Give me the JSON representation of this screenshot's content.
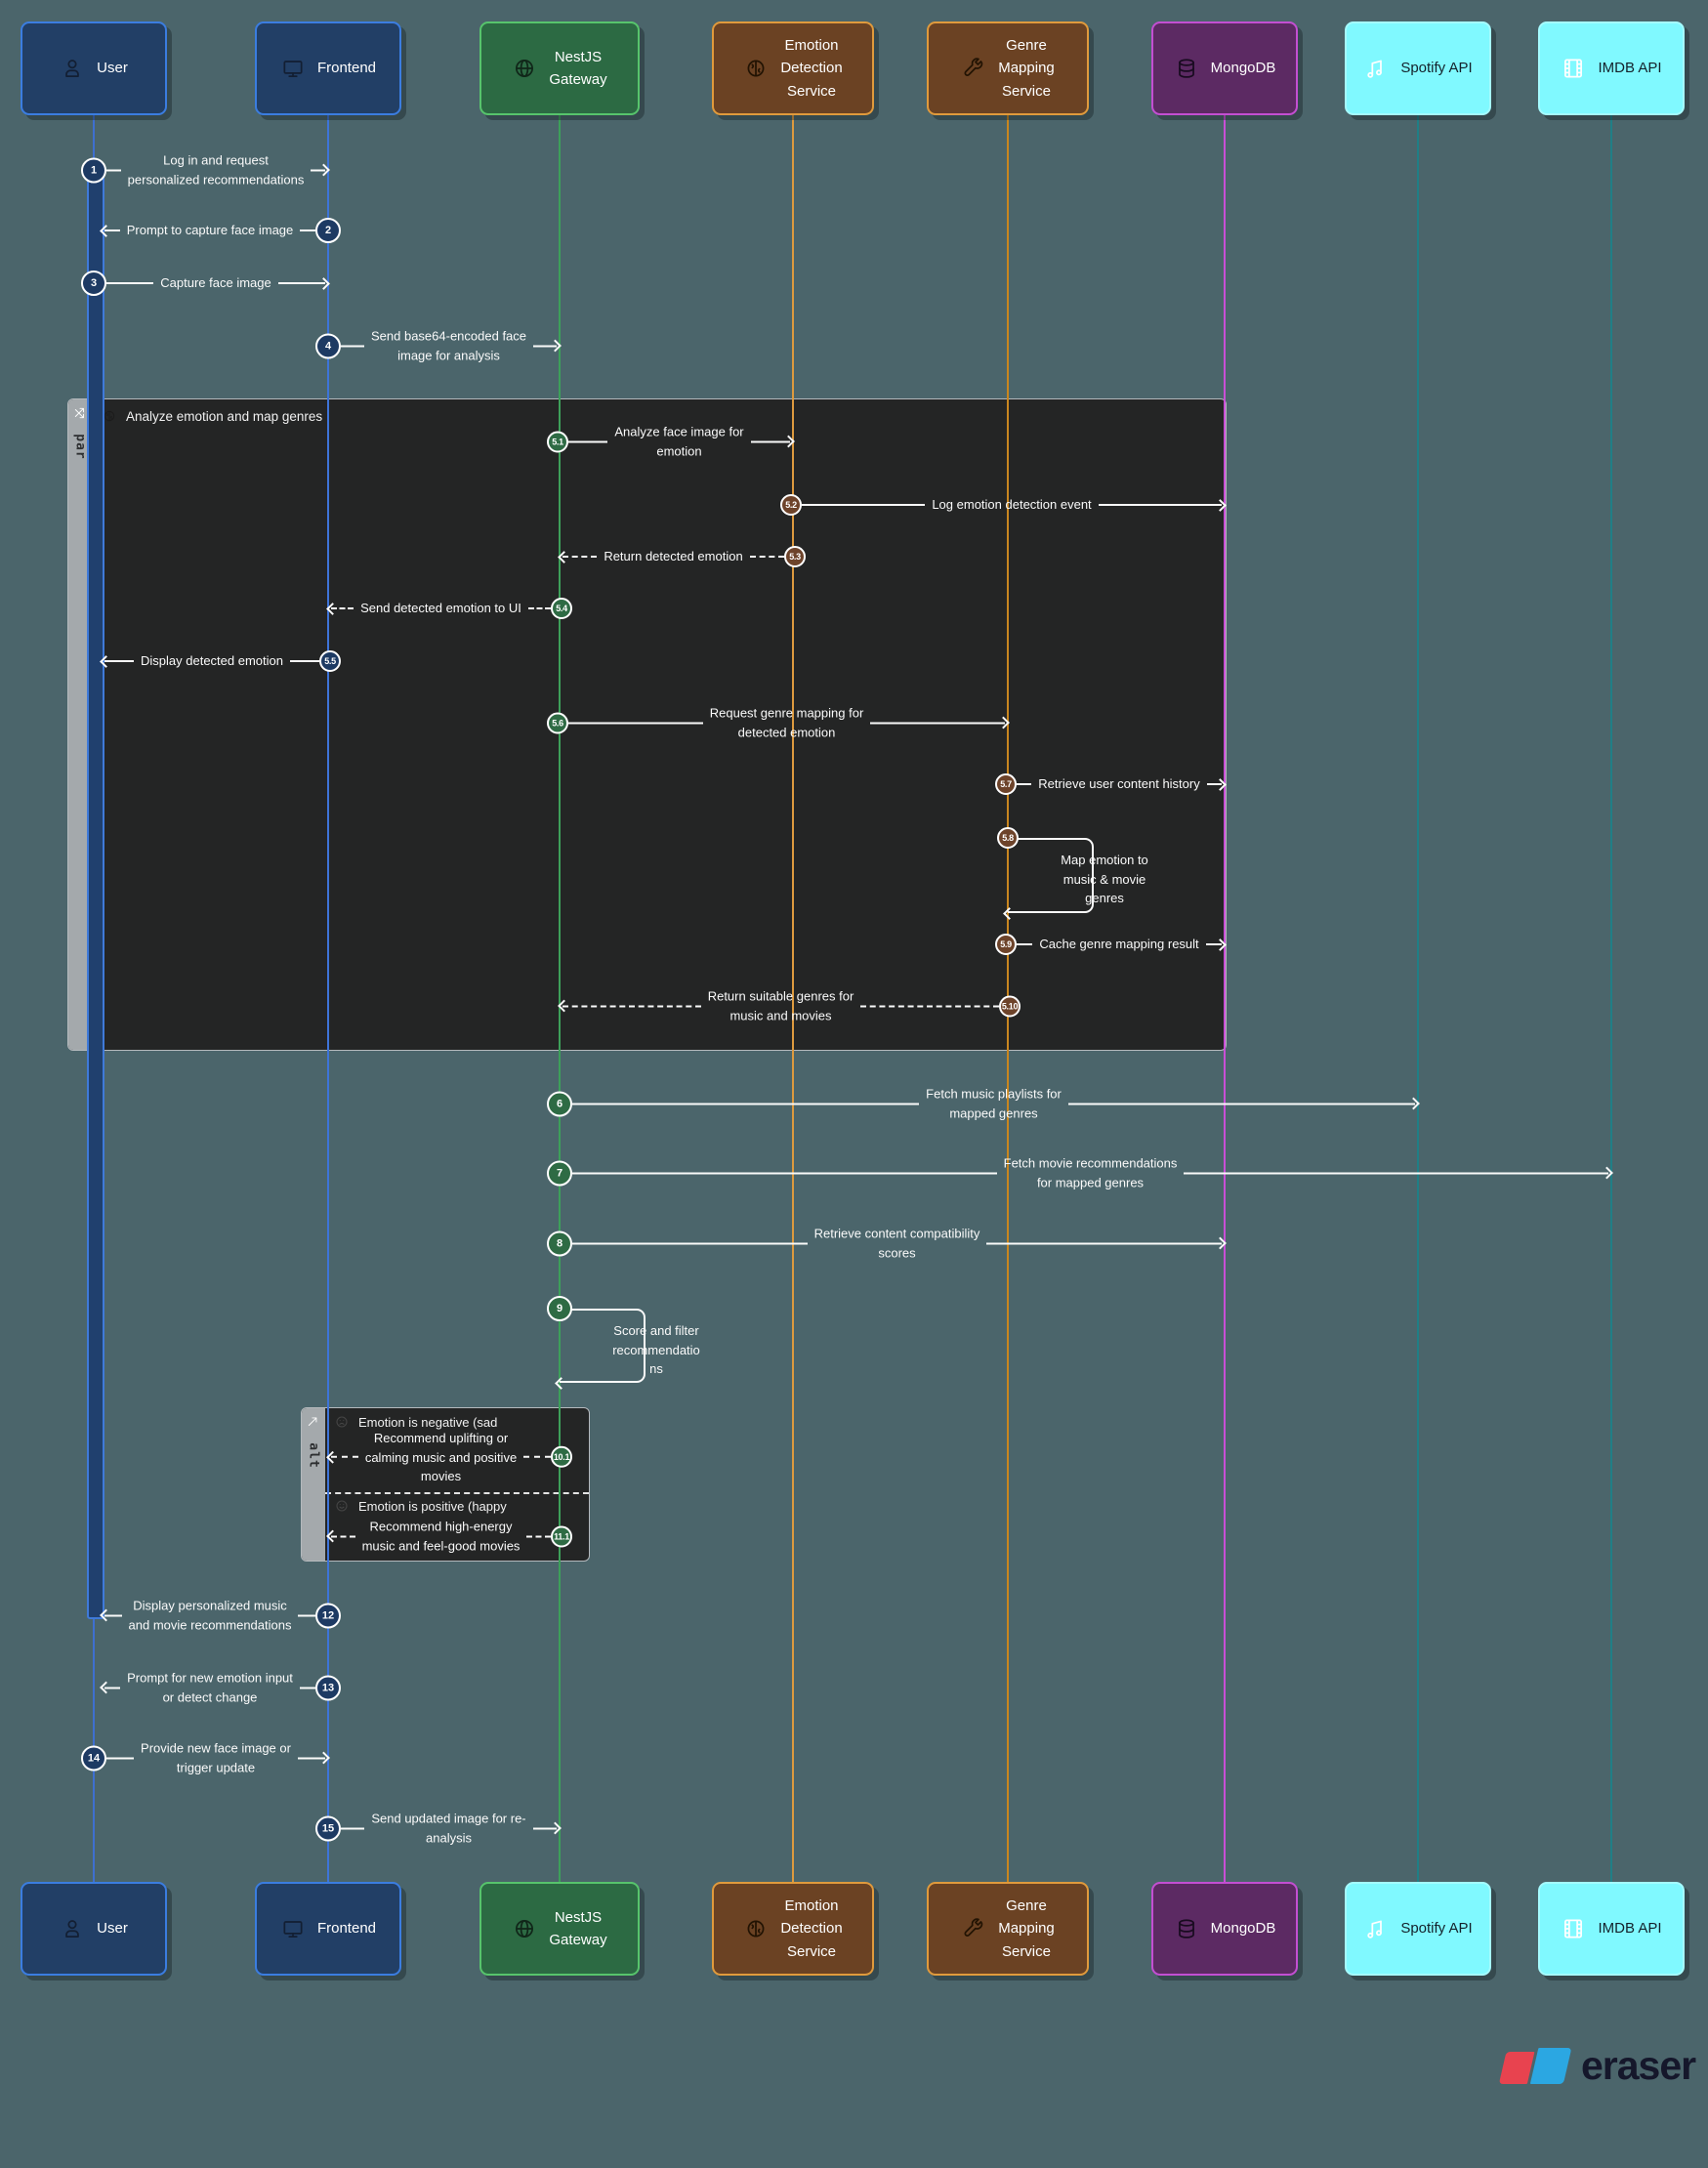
{
  "diagram": {
    "background": "#4b656b",
    "actors": [
      {
        "id": "user",
        "label": "User",
        "icon": "person-icon",
        "fill": "#223f66",
        "border": "#3b7de0",
        "text_color": "#ffffff",
        "icon_color": "#131f33",
        "lifeline": "#3e6fd0"
      },
      {
        "id": "frontend",
        "label": "Frontend",
        "icon": "monitor-icon",
        "fill": "#223f66",
        "border": "#3b7de0",
        "text_color": "#ffffff",
        "icon_color": "#131f33",
        "lifeline": "#3e74d8"
      },
      {
        "id": "gateway",
        "label": "NestJS\nGateway",
        "icon": "globe-icon",
        "fill": "#2c6a43",
        "border": "#57c46c",
        "text_color": "#ffffff",
        "icon_color": "#102619",
        "lifeline": "#3da05a"
      },
      {
        "id": "emotion",
        "label": "Emotion\nDetection\nService",
        "icon": "brain-icon",
        "fill": "#6b4223",
        "border": "#e09a3c",
        "text_color": "#ffffff",
        "icon_color": "#221303",
        "lifeline": "#dd9a3f"
      },
      {
        "id": "genre",
        "label": "Genre\nMapping\nService",
        "icon": "wrench-icon",
        "fill": "#6b4223",
        "border": "#e09a3c",
        "text_color": "#ffffff",
        "icon_color": "#221303",
        "lifeline": "#c9861f"
      },
      {
        "id": "mongodb",
        "label": "MongoDB",
        "icon": "database-icon",
        "fill": "#5c2a63",
        "border": "#c34fd2",
        "text_color": "#ffffff",
        "icon_color": "#190b20",
        "lifeline": "#c94fd6"
      },
      {
        "id": "spotify",
        "label": "Spotify API",
        "icon": "music-icon",
        "fill": "#80f9ff",
        "border": "#a5fbff",
        "text_color": "#14222b",
        "icon_color": "#ffffff",
        "lifeline": "#207f86"
      },
      {
        "id": "imdb",
        "label": "IMDB API",
        "icon": "film-icon",
        "fill": "#80f9ff",
        "border": "#a5fbff",
        "text_color": "#14222b",
        "icon_color": "#ffffff",
        "lifeline": "#207f86"
      }
    ],
    "messages": [
      {
        "num": "1",
        "from": "user",
        "to": "frontend",
        "text": "Log in and request\npersonalized recommendations",
        "style": "solid"
      },
      {
        "num": "2",
        "from": "frontend",
        "to": "user",
        "text": "Prompt to capture face image",
        "style": "solid"
      },
      {
        "num": "3",
        "from": "user",
        "to": "frontend",
        "text": "Capture face image",
        "style": "solid"
      },
      {
        "num": "4",
        "from": "frontend",
        "to": "gateway",
        "text": "Send base64-encoded face\nimage for analysis",
        "style": "solid"
      },
      {
        "num": "5.1",
        "from": "gateway",
        "to": "emotion",
        "text": "Analyze face image for\nemotion",
        "style": "solid"
      },
      {
        "num": "5.2",
        "from": "emotion",
        "to": "mongodb",
        "text": "Log emotion detection event",
        "style": "solid"
      },
      {
        "num": "5.3",
        "from": "emotion",
        "to": "gateway",
        "text": "Return detected emotion",
        "style": "dashed"
      },
      {
        "num": "5.4",
        "from": "gateway",
        "to": "frontend",
        "text": "Send detected emotion to UI",
        "style": "dashed"
      },
      {
        "num": "5.5",
        "from": "frontend",
        "to": "user",
        "text": "Display detected emotion",
        "style": "solid"
      },
      {
        "num": "5.6",
        "from": "gateway",
        "to": "genre",
        "text": "Request genre mapping for\ndetected emotion",
        "style": "solid"
      },
      {
        "num": "5.7",
        "from": "genre",
        "to": "mongodb",
        "text": "Retrieve user content history",
        "style": "solid"
      },
      {
        "num": "5.8",
        "from": "genre",
        "to": "genre",
        "text": "Map emotion to\nmusic & movie\ngenres",
        "style": "self"
      },
      {
        "num": "5.9",
        "from": "genre",
        "to": "mongodb",
        "text": "Cache genre mapping result",
        "style": "solid"
      },
      {
        "num": "5.10",
        "from": "genre",
        "to": "gateway",
        "text": "Return suitable genres for\nmusic and movies",
        "style": "dashed"
      },
      {
        "num": "6",
        "from": "gateway",
        "to": "spotify",
        "text": "Fetch music playlists for\nmapped genres",
        "style": "solid"
      },
      {
        "num": "7",
        "from": "gateway",
        "to": "imdb",
        "text": "Fetch movie recommendations\nfor mapped genres",
        "style": "solid"
      },
      {
        "num": "8",
        "from": "gateway",
        "to": "mongodb",
        "text": "Retrieve content compatibility\nscores",
        "style": "solid"
      },
      {
        "num": "9",
        "from": "gateway",
        "to": "gateway",
        "text": "Score and filter\nrecommendatio\nns",
        "style": "self"
      },
      {
        "num": "10.1",
        "from": "gateway",
        "to": "frontend",
        "text": "Recommend uplifting or\ncalming music and positive\nmovies",
        "style": "dashed"
      },
      {
        "num": "11.1",
        "from": "gateway",
        "to": "frontend",
        "text": "Recommend high-energy\nmusic and feel-good movies",
        "style": "dashed"
      },
      {
        "num": "12",
        "from": "frontend",
        "to": "user",
        "text": "Display personalized music\nand movie recommendations",
        "style": "solid"
      },
      {
        "num": "13",
        "from": "frontend",
        "to": "user",
        "text": "Prompt for new emotion input\nor detect change",
        "style": "solid"
      },
      {
        "num": "14",
        "from": "user",
        "to": "frontend",
        "text": "Provide new face image or\ntrigger update",
        "style": "solid"
      },
      {
        "num": "15",
        "from": "frontend",
        "to": "gateway",
        "text": "Send updated image for re-\nanalysis",
        "style": "solid"
      }
    ],
    "fragments": {
      "par": {
        "label": "par",
        "title": "Analyze emotion and map genres",
        "side_icon": "parallel-icon",
        "title_icon": "brain-icon"
      },
      "alt": {
        "label": "alt",
        "side_icon": "branch-icon",
        "sections": [
          {
            "guard": "Emotion is negative (sad",
            "icon": "sad-face-icon"
          },
          {
            "guard": "Emotion is positive (happy",
            "icon": "happy-face-icon"
          }
        ]
      }
    },
    "colors": {
      "message_circle_navy": "#1d3a63",
      "message_circle_green": "#2e6b44",
      "message_circle_brown": "#6d432a",
      "message_line": "#fafafa",
      "logo_red": "#e8434f",
      "logo_blue": "#2ba7e2"
    },
    "footer": {
      "brand": "eraser"
    }
  }
}
